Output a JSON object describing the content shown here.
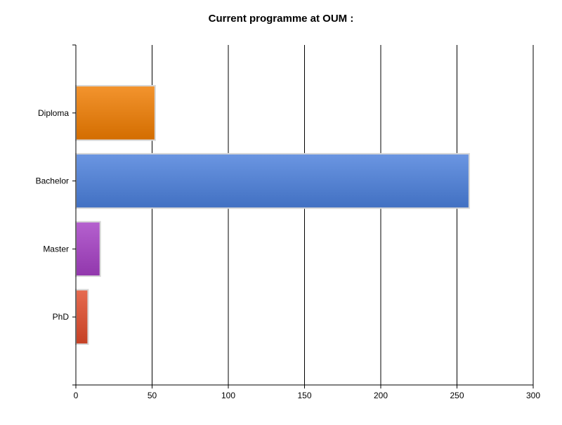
{
  "chart_data": {
    "type": "bar",
    "orientation": "horizontal",
    "title": "Current programme at OUM :",
    "xlabel": "",
    "ylabel": "",
    "categories": [
      "Diploma",
      "Bachelor",
      "Master",
      "PhD"
    ],
    "values": [
      52,
      258,
      16,
      8
    ],
    "colors": [
      "#f07c00",
      "#4a7fdc",
      "#a53ec4",
      "#e04a2a"
    ],
    "xlim": [
      0,
      300
    ],
    "xticks": [
      0,
      50,
      100,
      150,
      200,
      250,
      300
    ],
    "grid": true,
    "legend": "none"
  }
}
